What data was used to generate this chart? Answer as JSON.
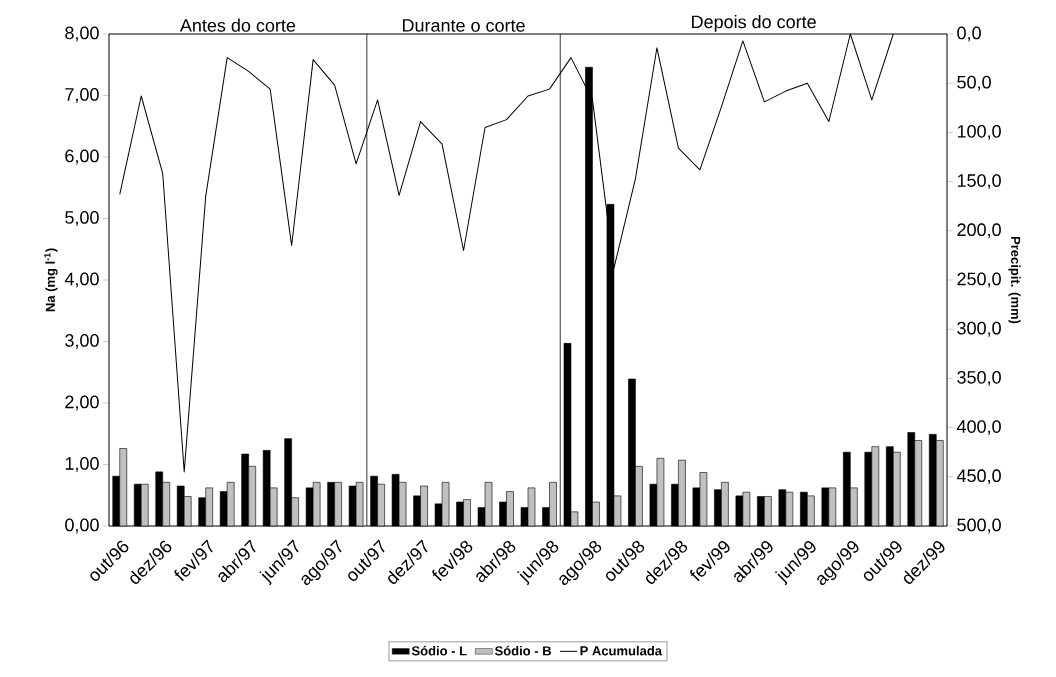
{
  "chart_data": {
    "type": "bar",
    "categories": [
      "out/96",
      null,
      "dez/96",
      null,
      "fev/97",
      null,
      "abr/97",
      null,
      "jun/97",
      null,
      "ago/97",
      null,
      "out/97",
      null,
      "dez/97",
      null,
      "fev/98",
      null,
      "abr/98",
      null,
      "jun/98",
      null,
      "ago/98",
      null,
      "out/98",
      null,
      "dez/98",
      null,
      "fev/99",
      null,
      "abr/99",
      null,
      "jun/99",
      null,
      "ago/99",
      null,
      "out/99",
      null,
      "dez/99"
    ],
    "series": [
      {
        "name": "Sódio - L",
        "color": "#000000",
        "values": [
          0.81,
          0.68,
          0.88,
          0.65,
          0.46,
          0.56,
          1.17,
          1.23,
          1.42,
          0.62,
          0.71,
          0.65,
          0.81,
          0.84,
          0.49,
          0.36,
          0.39,
          0.3,
          0.39,
          0.3,
          0.3,
          2.97,
          7.46,
          5.23,
          2.39,
          0.68,
          0.68,
          0.62,
          0.59,
          0.49,
          0.48,
          0.59,
          0.55,
          0.62,
          1.2,
          1.2,
          1.29,
          1.52,
          1.49
        ]
      },
      {
        "name": "Sódio - B",
        "color": "#c0c0c0",
        "values": [
          1.26,
          0.68,
          0.71,
          0.48,
          0.62,
          0.71,
          0.97,
          0.62,
          0.46,
          0.71,
          0.71,
          0.71,
          0.68,
          0.71,
          0.65,
          0.71,
          0.43,
          0.71,
          0.56,
          0.62,
          0.71,
          0.23,
          0.39,
          0.49,
          0.97,
          1.1,
          1.07,
          0.87,
          0.71,
          0.55,
          0.48,
          0.55,
          0.49,
          0.62,
          0.62,
          1.29,
          1.2,
          1.39,
          1.39
        ]
      },
      {
        "name": "P Acumulada",
        "type": "line",
        "axis": "y2",
        "color": "#000000",
        "values": [
          163,
          63,
          142,
          445,
          165,
          24,
          38,
          56,
          215,
          26,
          52,
          132,
          67,
          164,
          89,
          112,
          220,
          95,
          87,
          63,
          56,
          24,
          67,
          238,
          147,
          14,
          116,
          138,
          74,
          7,
          69,
          58,
          50,
          89,
          0,
          67,
          0,
          null,
          null
        ]
      }
    ],
    "ylabel": "Na (mg l$^{-1}$)",
    "y2label": "Precipit. (mm)",
    "ylim": [
      0,
      8
    ],
    "yticks": [
      {
        "value": 0,
        "label": "0,00"
      },
      {
        "value": 1,
        "label": "1,00"
      },
      {
        "value": 2,
        "label": "2,00"
      },
      {
        "value": 3,
        "label": "3,00"
      },
      {
        "value": 4,
        "label": "4,00"
      },
      {
        "value": 5,
        "label": "5,00"
      },
      {
        "value": 6,
        "label": "6,00"
      },
      {
        "value": 7,
        "label": "7,00"
      },
      {
        "value": 8,
        "label": "8,00"
      }
    ],
    "y2lim": [
      500,
      0
    ],
    "y2ticks": [
      {
        "value": 0,
        "label": "0,0"
      },
      {
        "value": 50,
        "label": "50,0"
      },
      {
        "value": 100,
        "label": "100,0"
      },
      {
        "value": 150,
        "label": "150,0"
      },
      {
        "value": 200,
        "label": "200,0"
      },
      {
        "value": 250,
        "label": "250,0"
      },
      {
        "value": 300,
        "label": "300,0"
      },
      {
        "value": 350,
        "label": "350,0"
      },
      {
        "value": 400,
        "label": "400,0"
      },
      {
        "value": 450,
        "label": "450,0"
      },
      {
        "value": 500,
        "label": "500,0"
      }
    ],
    "annotations": [
      "Antes do corte",
      "Durante o corte",
      "Depois do corte"
    ],
    "legend": "bottom"
  }
}
